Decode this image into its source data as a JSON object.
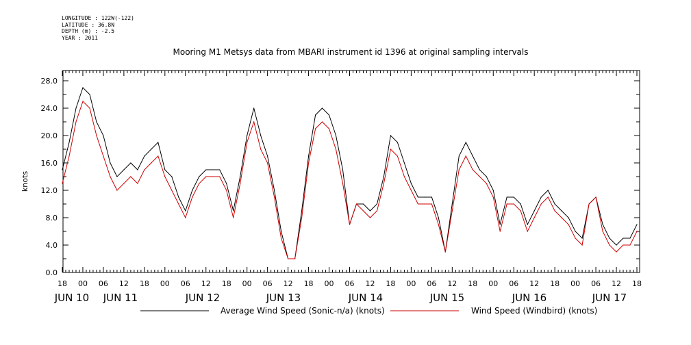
{
  "header": {
    "longitude": "LONGITUDE : 122W(-122)",
    "latitude": "LATITUDE : 36.8N",
    "depth": "DEPTH (m) : -2.5",
    "year": "YEAR : 2011"
  },
  "chart_data": {
    "type": "line",
    "title": "Mooring M1 Metsys data from MBARI instrument id 1396 at original sampling intervals",
    "ylabel": "knots",
    "xlabel": "",
    "ylim": [
      0,
      28
    ],
    "yticks": [
      "0.0",
      "4.0",
      "8.0",
      "12.0",
      "16.0",
      "20.0",
      "24.0",
      "28.0"
    ],
    "xlim_hours": [
      0,
      168
    ],
    "x_tick_hour_labels": [
      "18",
      "00",
      "06",
      "12",
      "18",
      "00",
      "06",
      "12",
      "18",
      "00",
      "06",
      "12",
      "18",
      "00",
      "06",
      "12",
      "18",
      "00",
      "06",
      "12",
      "18",
      "00",
      "06",
      "12",
      "18",
      "00",
      "06",
      "12",
      "18"
    ],
    "day_labels": [
      {
        "label": "JUN 10",
        "hour": 0
      },
      {
        "label": "JUN 11",
        "hour": 12
      },
      {
        "label": "JUN 12",
        "hour": 36
      },
      {
        "label": "JUN 13",
        "hour": 60
      },
      {
        "label": "JUN 14",
        "hour": 84
      },
      {
        "label": "JUN 15",
        "hour": 108
      },
      {
        "label": "JUN 16",
        "hour": 132
      },
      {
        "label": "JUN 17",
        "hour": 156
      }
    ],
    "series": [
      {
        "name": "Average Wind Speed (Sonic-n/a) (knots)",
        "color": "#000000",
        "x": [
          0,
          2,
          4,
          6,
          8,
          10,
          12,
          14,
          16,
          18,
          20,
          22,
          24,
          26,
          28,
          30,
          32,
          34,
          36,
          38,
          40,
          42,
          44,
          46,
          48,
          50,
          52,
          54,
          56,
          58,
          60,
          62,
          64,
          66,
          68,
          70,
          72,
          74,
          76,
          78,
          80,
          82,
          84,
          86,
          88,
          90,
          92,
          94,
          96,
          98,
          100,
          102,
          104,
          106,
          108,
          110,
          112,
          114,
          116,
          118,
          120,
          122,
          124,
          126,
          128,
          130,
          132,
          134,
          136,
          138,
          140,
          142,
          144,
          146,
          148,
          150,
          152,
          154,
          156,
          158,
          160,
          162,
          164,
          166,
          168
        ],
        "values": [
          15,
          19,
          24,
          27,
          26,
          22,
          20,
          16,
          14,
          15,
          16,
          15,
          17,
          18,
          19,
          15,
          14,
          11,
          9,
          12,
          14,
          15,
          15,
          15,
          13,
          9,
          14,
          20,
          24,
          20,
          17,
          12,
          6,
          2,
          2,
          9,
          17,
          23,
          24,
          23,
          20,
          15,
          7,
          10,
          10,
          9,
          10,
          14,
          20,
          19,
          16,
          13,
          11,
          11,
          11,
          8,
          3,
          10,
          17,
          19,
          17,
          15,
          14,
          12,
          7,
          11,
          11,
          10,
          7,
          9,
          11,
          12,
          10,
          9,
          8,
          6,
          5,
          10,
          11,
          7,
          5,
          4,
          5,
          5,
          7
        ]
      },
      {
        "name": "Wind Speed (Windbird) (knots)",
        "color": "#cc0000",
        "x": [
          0,
          2,
          4,
          6,
          8,
          10,
          12,
          14,
          16,
          18,
          20,
          22,
          24,
          26,
          28,
          30,
          32,
          34,
          36,
          38,
          40,
          42,
          44,
          46,
          48,
          50,
          52,
          54,
          56,
          58,
          60,
          62,
          64,
          66,
          68,
          70,
          72,
          74,
          76,
          78,
          80,
          82,
          84,
          86,
          88,
          90,
          92,
          94,
          96,
          98,
          100,
          102,
          104,
          106,
          108,
          110,
          112,
          114,
          116,
          118,
          120,
          122,
          124,
          126,
          128,
          130,
          132,
          134,
          136,
          138,
          140,
          142,
          144,
          146,
          148,
          150,
          152,
          154,
          156,
          158,
          160,
          162,
          164,
          166,
          168
        ],
        "values": [
          13,
          17,
          22,
          25,
          24,
          20,
          17,
          14,
          12,
          13,
          14,
          13,
          15,
          16,
          17,
          14,
          12,
          10,
          8,
          11,
          13,
          14,
          14,
          14,
          12,
          8,
          13,
          19,
          22,
          18,
          16,
          11,
          5,
          2,
          2,
          8,
          16,
          21,
          22,
          21,
          18,
          13,
          7,
          10,
          9,
          8,
          9,
          13,
          18,
          17,
          14,
          12,
          10,
          10,
          10,
          7,
          3,
          9,
          15,
          17,
          15,
          14,
          13,
          11,
          6,
          10,
          10,
          9,
          6,
          8,
          10,
          11,
          9,
          8,
          7,
          5,
          4,
          10,
          11,
          6,
          4,
          3,
          4,
          4,
          6
        ]
      }
    ]
  }
}
